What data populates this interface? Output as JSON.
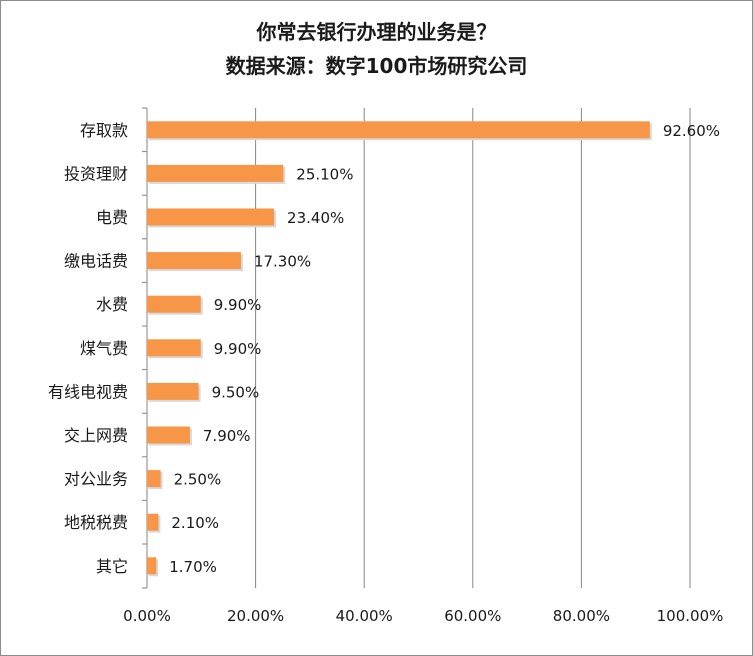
{
  "chart_data": {
    "type": "bar",
    "orientation": "horizontal",
    "title": "你常去银行办理的业务是？",
    "subtitle": "数据来源：数字100市场研究公司",
    "categories": [
      "存取款",
      "投资理财",
      "电费",
      "缴电话费",
      "水费",
      "煤气费",
      "有线电视费",
      "交上网费",
      "对公业务",
      "地税税费",
      "其它"
    ],
    "values": [
      92.6,
      25.1,
      23.4,
      17.3,
      9.9,
      9.9,
      9.5,
      7.9,
      2.5,
      2.1,
      1.7
    ],
    "value_labels": [
      "92.60%",
      "25.10%",
      "23.40%",
      "17.30%",
      "9.90%",
      "9.90%",
      "9.50%",
      "7.90%",
      "2.50%",
      "2.10%",
      "1.70%"
    ],
    "x_ticks": [
      "0.00%",
      "20.00%",
      "40.00%",
      "60.00%",
      "80.00%",
      "100.00%"
    ],
    "xlim": [
      0,
      100
    ],
    "xlabel": "",
    "ylabel": "",
    "grid": "vertical",
    "legend": "none",
    "colors": {
      "bar": "#f79646",
      "grid": "#868686",
      "text": "#1a1a1a"
    }
  }
}
